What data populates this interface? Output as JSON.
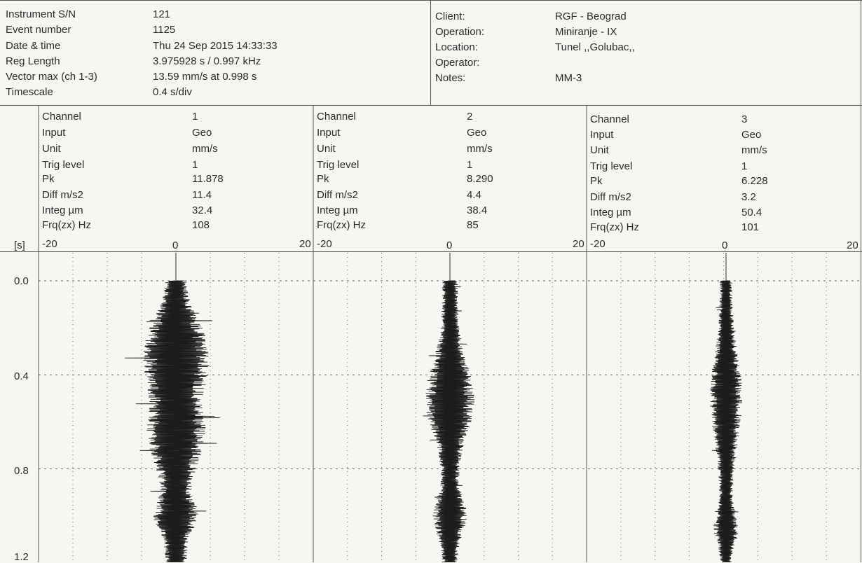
{
  "header": {
    "left": [
      {
        "label": "Instrument S/N",
        "value": "121"
      },
      {
        "label": "Event number",
        "value": "1125"
      },
      {
        "label": "Date & time",
        "value": "Thu 24 Sep 2015 14:33:33"
      },
      {
        "label": "Reg Length",
        "value": "3.975928 s / 0.997 kHz"
      },
      {
        "label": "Vector max (ch 1-3)",
        "value": "13.59 mm/s at 0.998 s"
      },
      {
        "label": "Timescale",
        "value": "0.4 s/div"
      }
    ],
    "right": [
      {
        "label": "Client:",
        "value": "RGF - Beograd"
      },
      {
        "label": "Operation:",
        "value": "Miniranje - IX"
      },
      {
        "label": "Location:",
        "value": "Tunel ,,Golubac,,"
      },
      {
        "label": "Operator:",
        "value": ""
      },
      {
        "label": "Notes:",
        "value": "MM-3"
      }
    ]
  },
  "channel_labels": [
    "Channel",
    "Input",
    "Unit",
    "Trig level",
    "Pk",
    "Diff m/s2",
    "Integ µm",
    "Frq(zx) Hz"
  ],
  "channels": [
    {
      "values": [
        "1",
        "Geo",
        "mm/s",
        "1",
        "11.878",
        "11.4",
        "32.4",
        "108"
      ]
    },
    {
      "values": [
        "2",
        "Geo",
        "mm/s",
        "1",
        "8.290",
        "4.4",
        "38.4",
        "85"
      ]
    },
    {
      "values": [
        "3",
        "Geo",
        "mm/s",
        "1",
        "6.228",
        "3.2",
        "50.4",
        "101"
      ]
    }
  ],
  "time_unit_label": "[s]",
  "colors": {
    "trace": "#1c1c1c",
    "grid": "#666666",
    "frame": "#555555"
  },
  "chart_data": {
    "type": "line",
    "orientation": "vertical-time",
    "xlim": [
      -20,
      20
    ],
    "x_tick_labels": [
      "-20",
      "0",
      "20"
    ],
    "ylim": [
      0,
      1.2
    ],
    "y_tick_labels": [
      "0.0",
      "0.4",
      "0.8",
      "1.2"
    ],
    "ylabel": "[s]",
    "grid": true,
    "series": [
      {
        "peak": 11.878
      },
      {
        "peak": 8.29
      },
      {
        "peak": 6.228
      }
    ]
  }
}
